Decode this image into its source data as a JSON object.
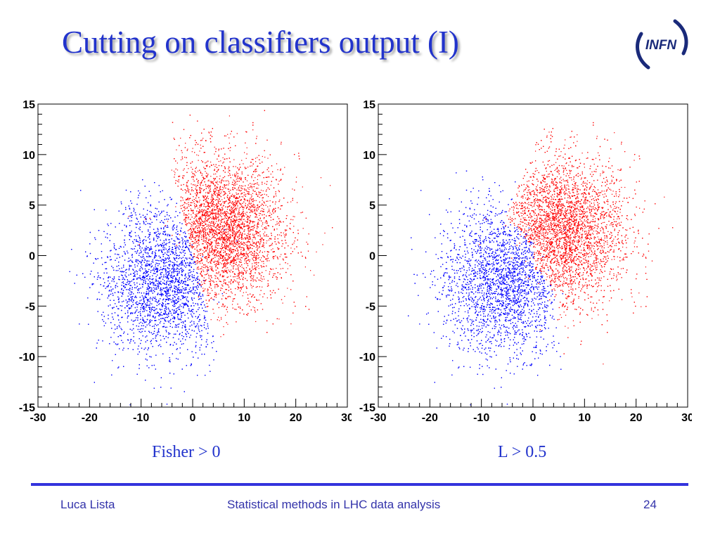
{
  "slide": {
    "title": "Cutting on classifiers output (I)",
    "logo_text": "INFN",
    "footer": {
      "left": "Luca Lista",
      "center": "Statistical methods in LHC data analysis",
      "page": "24"
    }
  },
  "colors": {
    "title": "#2233cc",
    "signal": "#ff0000",
    "background": "#0000ff",
    "rule": "#3333dd"
  },
  "chart_data": [
    {
      "type": "scatter",
      "caption": "Fisher > 0",
      "cut": "linear",
      "xlim": [
        -30,
        30
      ],
      "ylim": [
        -15,
        15
      ],
      "xticks": [
        "-30",
        "-20",
        "-10",
        "0",
        "10",
        "20",
        "30"
      ],
      "yticks": [
        "15",
        "10",
        "5",
        "0",
        "-5",
        "-10",
        "-15"
      ],
      "series": [
        {
          "color": "#ff0000",
          "center": [
            5.5,
            2.5
          ],
          "spread": [
            6.0,
            3.6
          ]
        },
        {
          "color": "#0000ff",
          "center": [
            -5.5,
            -2.5
          ],
          "spread": [
            6.0,
            3.6
          ]
        }
      ]
    },
    {
      "type": "scatter",
      "caption": "L > 0.5",
      "cut": "curved",
      "xlim": [
        -30,
        30
      ],
      "ylim": [
        -15,
        15
      ],
      "xticks": [
        "-30",
        "-20",
        "-10",
        "0",
        "10",
        "20",
        "30"
      ],
      "yticks": [
        "15",
        "10",
        "5",
        "0",
        "-5",
        "-10",
        "-15"
      ],
      "series": [
        {
          "color": "#ff0000",
          "center": [
            5.5,
            2.5
          ],
          "spread": [
            6.0,
            3.6
          ]
        },
        {
          "color": "#0000ff",
          "center": [
            -5.5,
            -2.5
          ],
          "spread": [
            6.0,
            3.6
          ]
        }
      ]
    }
  ]
}
